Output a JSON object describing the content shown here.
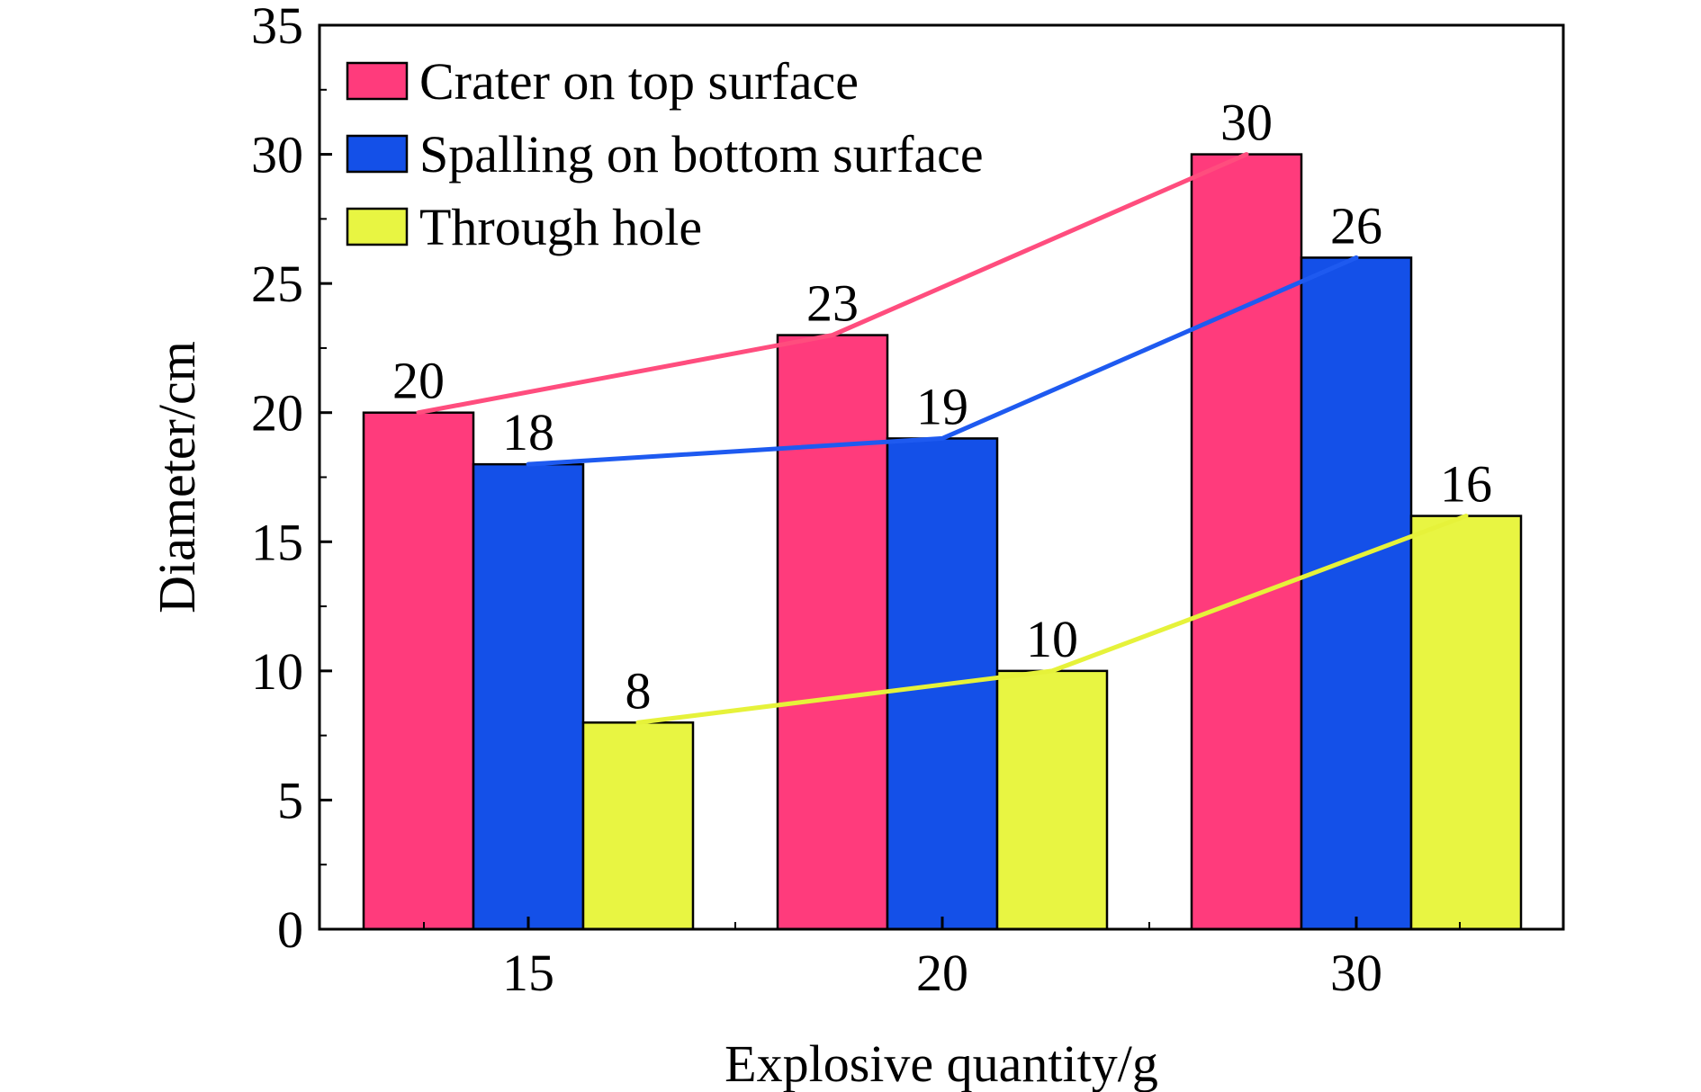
{
  "chart_data": {
    "type": "bar",
    "title": "",
    "xlabel": "Explosive quantity/g",
    "ylabel": "Diameter/cm",
    "categories": [
      "15",
      "20",
      "30"
    ],
    "ylim": [
      0,
      35
    ],
    "yticks": [
      0,
      5,
      10,
      15,
      20,
      25,
      30,
      35
    ],
    "grid": false,
    "legend_position": "top-left",
    "trend_lines": true,
    "series": [
      {
        "name": "Crater on top surface",
        "values": [
          20,
          23,
          30
        ],
        "color": "#FF3B7C",
        "line_color": "#FF4D7E"
      },
      {
        "name": "Spalling on bottom surface",
        "values": [
          18,
          19,
          26
        ],
        "color": "#1450E8",
        "line_color": "#1E5AF0"
      },
      {
        "name": "Through hole",
        "values": [
          8,
          10,
          16
        ],
        "color": "#E8F542",
        "line_color": "#E6F23A"
      }
    ]
  }
}
